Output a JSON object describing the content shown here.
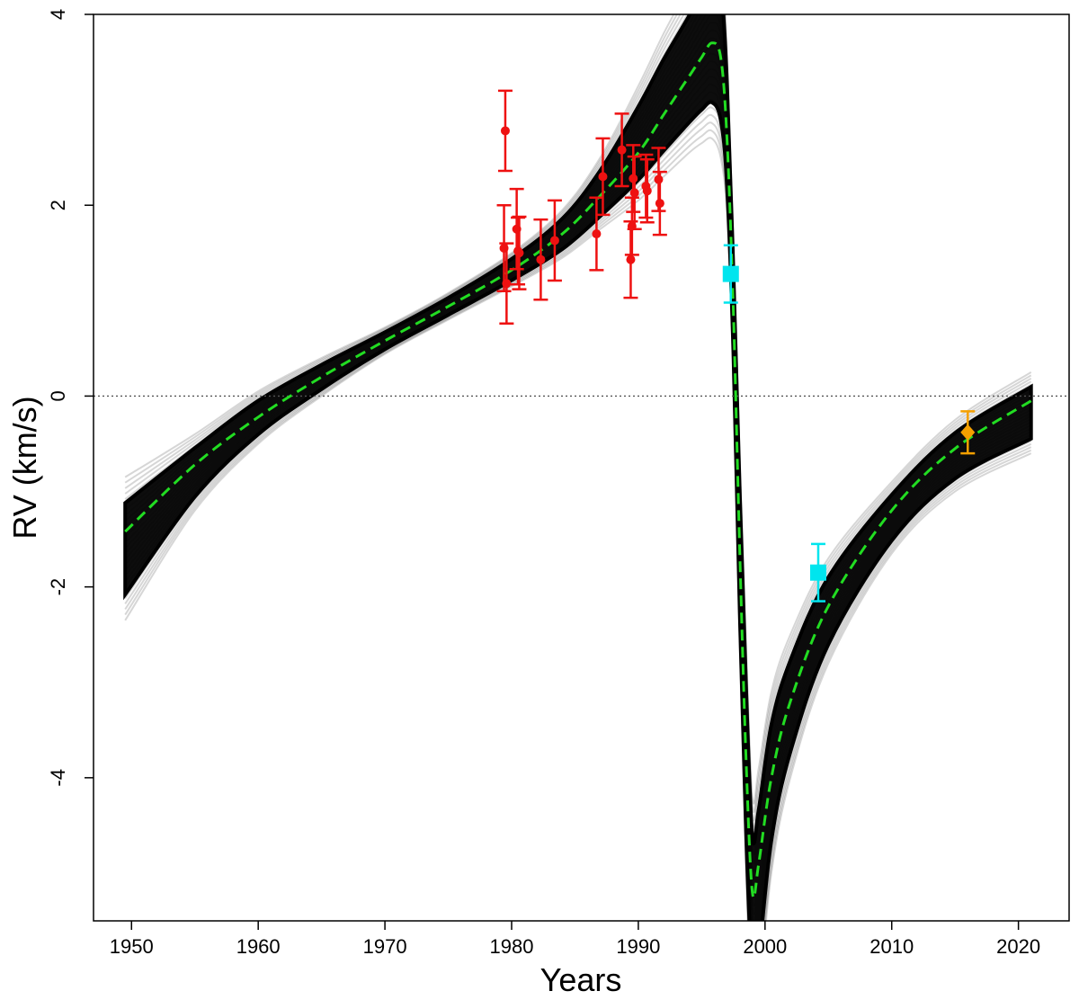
{
  "chart_data": {
    "type": "scatter",
    "title": "",
    "xlabel": "Years",
    "ylabel": "RV (km/s)",
    "xlim": [
      1947,
      2024
    ],
    "ylim": [
      -5.5,
      4
    ],
    "x_ticks": [
      1950,
      1960,
      1970,
      1980,
      1990,
      2000,
      2010,
      2020
    ],
    "x_tick_labels": [
      "1950",
      "1960",
      "1970",
      "1980",
      "1990",
      "2000",
      "2010",
      "2020"
    ],
    "y_ticks": [
      -4,
      -2,
      0,
      2,
      4
    ],
    "y_tick_labels": [
      "-4",
      "-2",
      "0",
      "2",
      "4"
    ],
    "grid": false,
    "reference_line": {
      "y": 0,
      "style": "dotted",
      "color": "#555555"
    },
    "model_curve": {
      "style": "dashed",
      "color": "#22dd22",
      "x": [
        1949.5,
        1955,
        1960,
        1965,
        1970,
        1975,
        1980,
        1984,
        1987,
        1990,
        1992,
        1994,
        1995,
        1995.8,
        1996.5,
        1997,
        1997.5,
        1998,
        1998.5,
        1999,
        1999.5,
        2000.5,
        2002,
        2005,
        2010,
        2015,
        2021
      ],
      "y": [
        -1.42,
        -0.72,
        -0.22,
        0.2,
        0.58,
        0.94,
        1.32,
        1.7,
        2.1,
        2.55,
        2.95,
        3.35,
        3.55,
        3.7,
        3.55,
        2.7,
        0.9,
        -1.6,
        -3.8,
        -5.2,
        -4.9,
        -4.0,
        -3.2,
        -2.2,
        -1.2,
        -0.55,
        -0.05
      ]
    },
    "posterior_band": {
      "color": "#000000",
      "x": [
        1949.5,
        1955,
        1960,
        1965,
        1970,
        1975,
        1980,
        1984,
        1987,
        1990,
        1992,
        1994,
        1995,
        1995.8,
        1996.5,
        1997,
        1997.5,
        1998,
        1998.5,
        1999,
        1999.5,
        2000.5,
        2002,
        2005,
        2010,
        2015,
        2021
      ],
      "y_upper": [
        -0.85,
        -0.4,
        0.05,
        0.4,
        0.72,
        1.08,
        1.5,
        1.95,
        2.5,
        3.25,
        3.8,
        4.3,
        4.6,
        4.8,
        4.7,
        3.6,
        1.6,
        -0.6,
        -2.6,
        -4.2,
        -3.9,
        -3.1,
        -2.5,
        -1.7,
        -0.9,
        -0.25,
        0.25
      ],
      "y_lower": [
        -2.35,
        -1.2,
        -0.5,
        0.0,
        0.44,
        0.8,
        1.15,
        1.45,
        1.75,
        2.05,
        2.3,
        2.55,
        2.65,
        2.7,
        2.5,
        1.9,
        0.2,
        -2.6,
        -5.0,
        -6.5,
        -6.3,
        -5.0,
        -4.0,
        -2.8,
        -1.65,
        -1.0,
        -0.6
      ]
    },
    "series": [
      {
        "color": "#ee1111",
        "marker": "circle",
        "points": [
          {
            "x": 1979.5,
            "y": 2.78,
            "err": 0.42
          },
          {
            "x": 1979.4,
            "y": 1.55,
            "err": 0.45
          },
          {
            "x": 1979.6,
            "y": 1.18,
            "err": 0.42
          },
          {
            "x": 1980.4,
            "y": 1.75,
            "err": 0.42
          },
          {
            "x": 1980.6,
            "y": 1.5,
            "err": 0.38
          },
          {
            "x": 1980.5,
            "y": 1.52,
            "err": 0.35
          },
          {
            "x": 1982.3,
            "y": 1.43,
            "err": 0.42
          },
          {
            "x": 1983.4,
            "y": 1.63,
            "err": 0.42
          },
          {
            "x": 1986.7,
            "y": 1.7,
            "err": 0.38
          },
          {
            "x": 1987.2,
            "y": 2.3,
            "err": 0.4
          },
          {
            "x": 1988.7,
            "y": 2.58,
            "err": 0.38
          },
          {
            "x": 1989.4,
            "y": 1.43,
            "err": 0.4
          },
          {
            "x": 1989.5,
            "y": 1.78,
            "err": 0.3
          },
          {
            "x": 1989.6,
            "y": 2.28,
            "err": 0.35
          },
          {
            "x": 1989.7,
            "y": 2.13,
            "err": 0.38
          },
          {
            "x": 1990.6,
            "y": 2.2,
            "err": 0.33
          },
          {
            "x": 1990.7,
            "y": 2.15,
            "err": 0.33
          },
          {
            "x": 1991.6,
            "y": 2.27,
            "err": 0.33
          },
          {
            "x": 1991.7,
            "y": 2.02,
            "err": 0.33
          }
        ]
      },
      {
        "color": "#00e5ee",
        "marker": "square",
        "points": [
          {
            "x": 1997.3,
            "y": 1.28,
            "err": 0.3
          },
          {
            "x": 2004.2,
            "y": -1.85,
            "err": 0.3
          }
        ]
      },
      {
        "color": "#f5a000",
        "marker": "diamond",
        "points": [
          {
            "x": 2016.0,
            "y": -0.38,
            "err": 0.22
          }
        ]
      }
    ]
  }
}
